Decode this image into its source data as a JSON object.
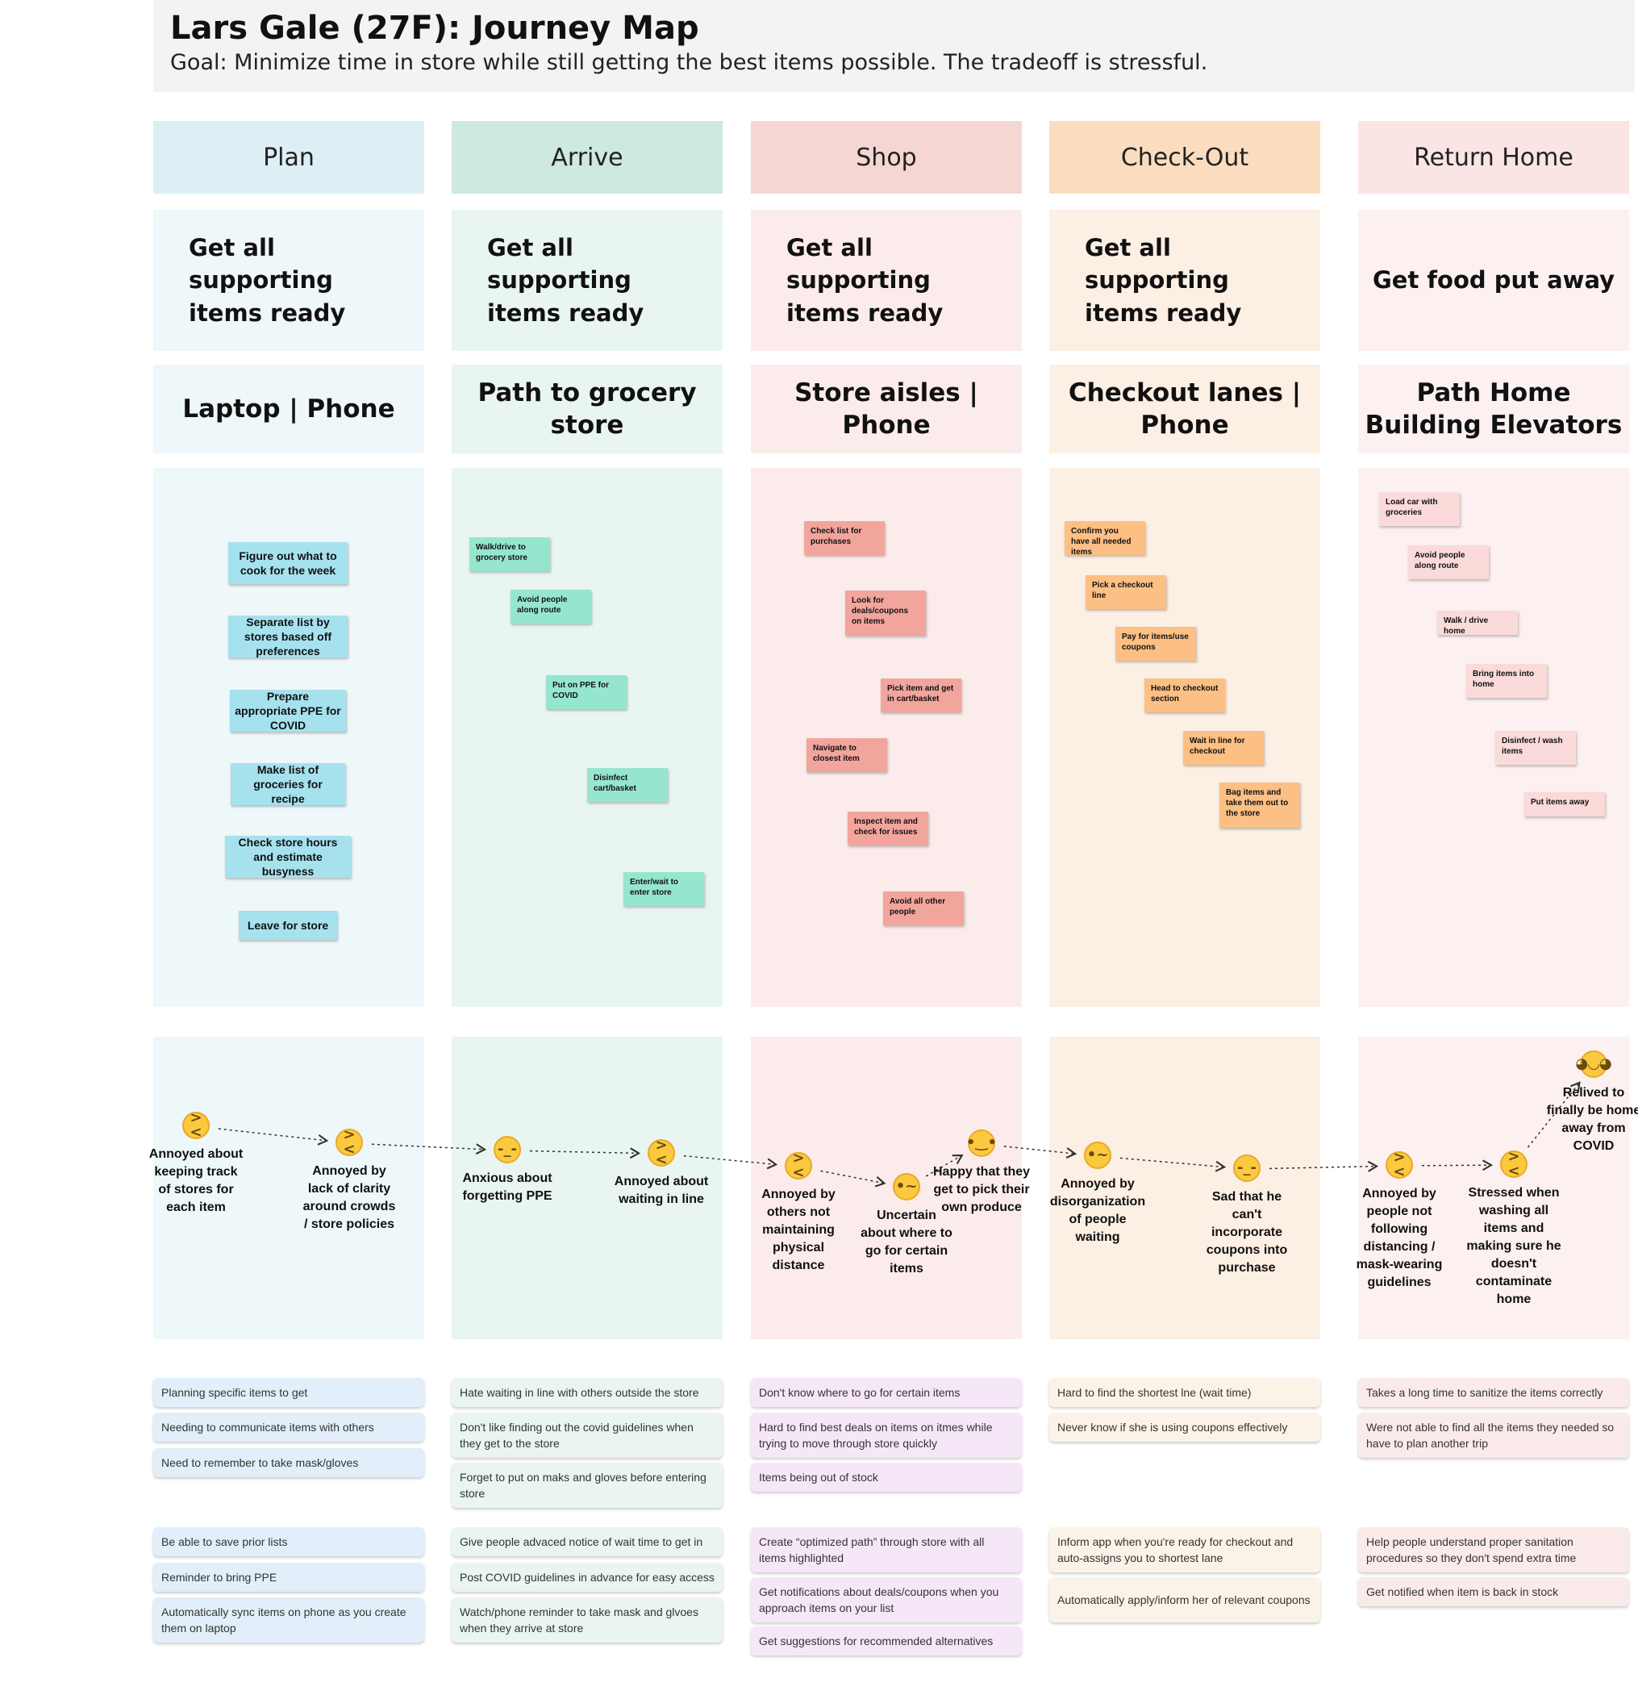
{
  "title": "Lars Gale (27F): Journey Map",
  "goal": "Goal: Minimize time in store while still getting the best items possible. The tradeoff is stressful.",
  "phases": [
    {
      "name": "Plan",
      "goal": "Get all supporting items ready",
      "channel": "Laptop  |  Phone",
      "colors": {
        "header": "#ddeff5",
        "light": "#eef7f9",
        "sticky": "#a6e1ee"
      },
      "actions": [
        "Figure out what to cook for the week",
        "Separate list by stores based off preferences",
        "Prepare appropriate PPE for COVID",
        "Make list of groceries for recipe",
        "Check store hours and estimate busyness",
        "Leave for store"
      ],
      "pain_points": [
        "Planning specific items to get",
        "Needing to communicate items with others",
        "Need to remember to take mask/gloves"
      ],
      "opportunities": [
        "Be able to save prior lists",
        "Reminder to bring PPE",
        "Automatically sync items on phone as you create them on laptop"
      ]
    },
    {
      "name": "Arrive",
      "goal": "Get all supporting items ready",
      "channel": "Path to grocery store",
      "colors": {
        "header": "#cde9e1",
        "light": "#e9f5f1",
        "sticky": "#96e6cf"
      },
      "actions": [
        "Walk/drive to grocery store",
        "Avoid people along route",
        "Put on PPE for COVID",
        "Disinfect cart/basket",
        "Enter/wait to enter store"
      ],
      "pain_points": [
        "Hate waiting in line with others outside the store",
        "Don't like finding out the covid guidelines when they get to the store",
        "Forget to put on maks and gloves before entering store"
      ],
      "opportunities": [
        "Give people advaced notice of wait time to get in",
        "Post COVID guidelines in advance for easy access",
        "Watch/phone reminder to take mask and glvoes when they arrive at store"
      ]
    },
    {
      "name": "Shop",
      "goal": "Get all supporting items ready",
      "channel": "Store aisles  |  Phone",
      "colors": {
        "header": "#f5d6d2",
        "light": "#fbeceb",
        "sticky": "#f2a59d"
      },
      "actions": [
        "Check list for purchases",
        "Look for deals/coupons on items",
        "Pick item and get in cart/basket",
        "Navigate to closest item",
        "Inspect item and check for issues",
        "Avoid all other people"
      ],
      "pain_points": [
        "Don't know where to go for certain items",
        "Hard to find best deals on items on itmes while trying to move through store quickly",
        "Items being out of stock"
      ],
      "opportunities": [
        "Create “optimized path” through store with all items highlighted",
        "Get notifications about deals/coupons when you approach items on your list",
        "Get suggestions for recommended alternatives"
      ]
    },
    {
      "name": "Check-Out",
      "goal": "Get all supporting items ready",
      "channel": "Checkout lanes |  Phone",
      "colors": {
        "header": "#fcdcbf",
        "light": "#fcefe3",
        "sticky": "#fcbf84"
      },
      "actions": [
        "Confirm you have all needed items",
        "Pick a checkout line",
        "Pay for items/use coupons",
        "Head to checkout section",
        "Wait in line for checkout",
        "Bag items and take them out to the store"
      ],
      "pain_points": [
        "Hard to find the shortest lne (wait time)",
        "Never know if she is using coupons effectively"
      ],
      "opportunities": [
        "Inform app when you're ready for checkout and auto-assigns you to shortest lane",
        "Automatically apply/inform her of relevant coupons"
      ]
    },
    {
      "name": "Return Home",
      "goal": "Get food put away",
      "channel": "Path Home\nBuilding Elevators",
      "colors": {
        "header": "#fbe4e4",
        "light": "#fcf0f0",
        "sticky": "#fbdada"
      },
      "actions": [
        "Load car with groceries",
        "Avoid people along route",
        "Walk / drive home",
        "Bring items into home",
        "Disinfect / wash items",
        "Put items away"
      ],
      "pain_points": [
        "Takes a long time to sanitize the items correctly",
        "Were not able to find all the items they needed so have to plan another trip"
      ],
      "opportunities": [
        "Help people understand proper sanitation procedures so they don't spend extra time",
        "Get notified when item is back in stock"
      ]
    }
  ],
  "emotions": [
    {
      "face": "tired",
      "label": "Annoyed about keeping track of stores for each item"
    },
    {
      "face": "tired",
      "label": "Annoyed by lack of clarity around crowds / store policies"
    },
    {
      "face": "relieved",
      "label": "Anxious about forgetting PPE"
    },
    {
      "face": "tired",
      "label": "Annoyed about waiting in line"
    },
    {
      "face": "tired",
      "label": "Annoyed by others not maintaining physical distance"
    },
    {
      "face": "raised-eyebrow",
      "label": "Uncertain about where to go for certain items"
    },
    {
      "face": "smile",
      "label": "Happy that they get to pick their own produce"
    },
    {
      "face": "raised-eyebrow",
      "label": "Annoyed by disorganization of people waiting"
    },
    {
      "face": "relieved",
      "label": "Sad that he can't incorporate coupons into purchase"
    },
    {
      "face": "tired",
      "label": "Annoyed by people not following distancing / mask-wearing guidelines"
    },
    {
      "face": "tired",
      "label": "Stressed when washing all items and making sure he doesn't contaminate home"
    },
    {
      "face": "grin",
      "label": "Relived to finally be home away from COVID"
    }
  ],
  "colors": {
    "header_bg": "#f3f3f3",
    "pain_plan": "#e2eef9",
    "pain_shop": "#f6e7f8"
  }
}
